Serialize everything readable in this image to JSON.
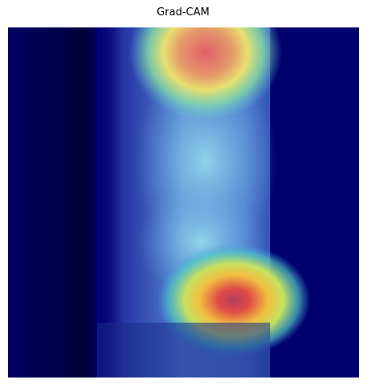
{
  "title": "Grad-CAM"
}
